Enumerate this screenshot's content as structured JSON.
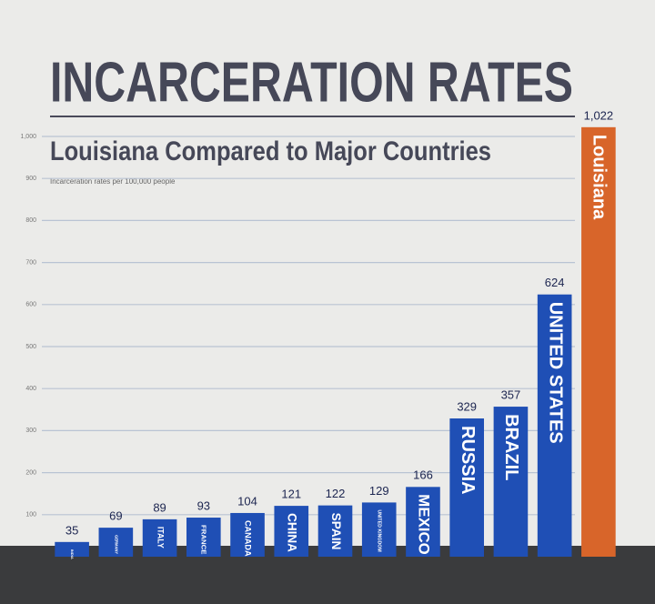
{
  "chart_data": {
    "type": "bar",
    "title": "INCARCERATION RATES",
    "subtitle": "Louisiana Compared to Major Countries",
    "note": "Incarceration rates per 100,000 people",
    "categories": [
      "INDIA",
      "GERMANY",
      "ITALY",
      "FRANCE",
      "CANADA",
      "CHINA",
      "SPAIN",
      "UNITED KINGDOM",
      "MEXICO",
      "RUSSIA",
      "BRAZIL",
      "UNITED STATES",
      "Louisiana"
    ],
    "values": [
      35,
      69,
      89,
      93,
      104,
      121,
      122,
      129,
      166,
      329,
      357,
      624,
      1022
    ],
    "value_labels": [
      "35",
      "69",
      "89",
      "93",
      "104",
      "121",
      "122",
      "129",
      "166",
      "329",
      "357",
      "624",
      "1,022"
    ],
    "colors": [
      "#1f4fb5",
      "#1f4fb5",
      "#1f4fb5",
      "#1f4fb5",
      "#1f4fb5",
      "#1f4fb5",
      "#1f4fb5",
      "#1f4fb5",
      "#1f4fb5",
      "#1f4fb5",
      "#1f4fb5",
      "#1f4fb5",
      "#d8652a"
    ],
    "ylim": [
      0,
      1000
    ],
    "yticks": [
      100,
      200,
      300,
      400,
      500,
      600,
      700,
      800,
      900,
      {
        "value": 1000,
        "label": "1,000"
      }
    ],
    "grid": true
  }
}
